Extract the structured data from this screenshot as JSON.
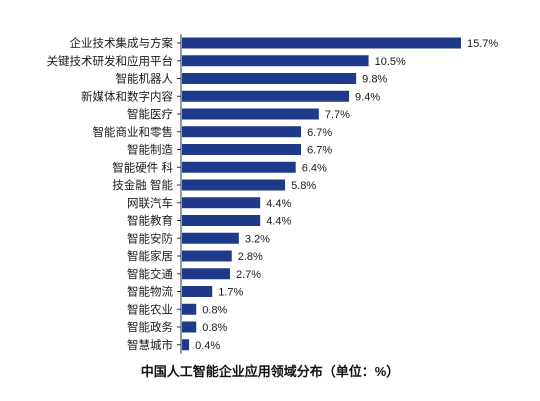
{
  "chart_data": {
    "type": "bar",
    "orientation": "horizontal",
    "categories": [
      "企业技术集成与方案",
      "关键技术研发和应用平台",
      "智能机器人",
      "新媒体和数字内容",
      "智能医疗",
      "智能商业和零售",
      "智能制造",
      "智能硬件 科",
      "技金融 智能",
      "网联汽车",
      "智能教育",
      "智能安防",
      "智能家居",
      "智能交通",
      "智能物流",
      "智能农业",
      "智能政务",
      "智慧城市"
    ],
    "values": [
      15.7,
      10.5,
      9.8,
      9.4,
      7.7,
      6.7,
      6.7,
      6.4,
      5.8,
      4.4,
      4.4,
      3.2,
      2.8,
      2.7,
      1.7,
      0.8,
      0.8,
      0.4
    ],
    "value_labels": [
      "15.7%",
      "10.5%",
      "9.8%",
      "9.4%",
      "7.7%",
      "6.7%",
      "6.7%",
      "6.4%",
      "5.8%",
      "4.4%",
      "4.4%",
      "3.2%",
      "2.8%",
      "2.7%",
      "1.7%",
      "0.8%",
      "0.8%",
      "0.4%"
    ],
    "title": "中国人工智能企业应用领域分布（单位：%）",
    "xlim": [
      0,
      15.7
    ],
    "grid": false,
    "legend": "none",
    "bar_color": "#1f3a8a",
    "axis_color": "#333333"
  }
}
